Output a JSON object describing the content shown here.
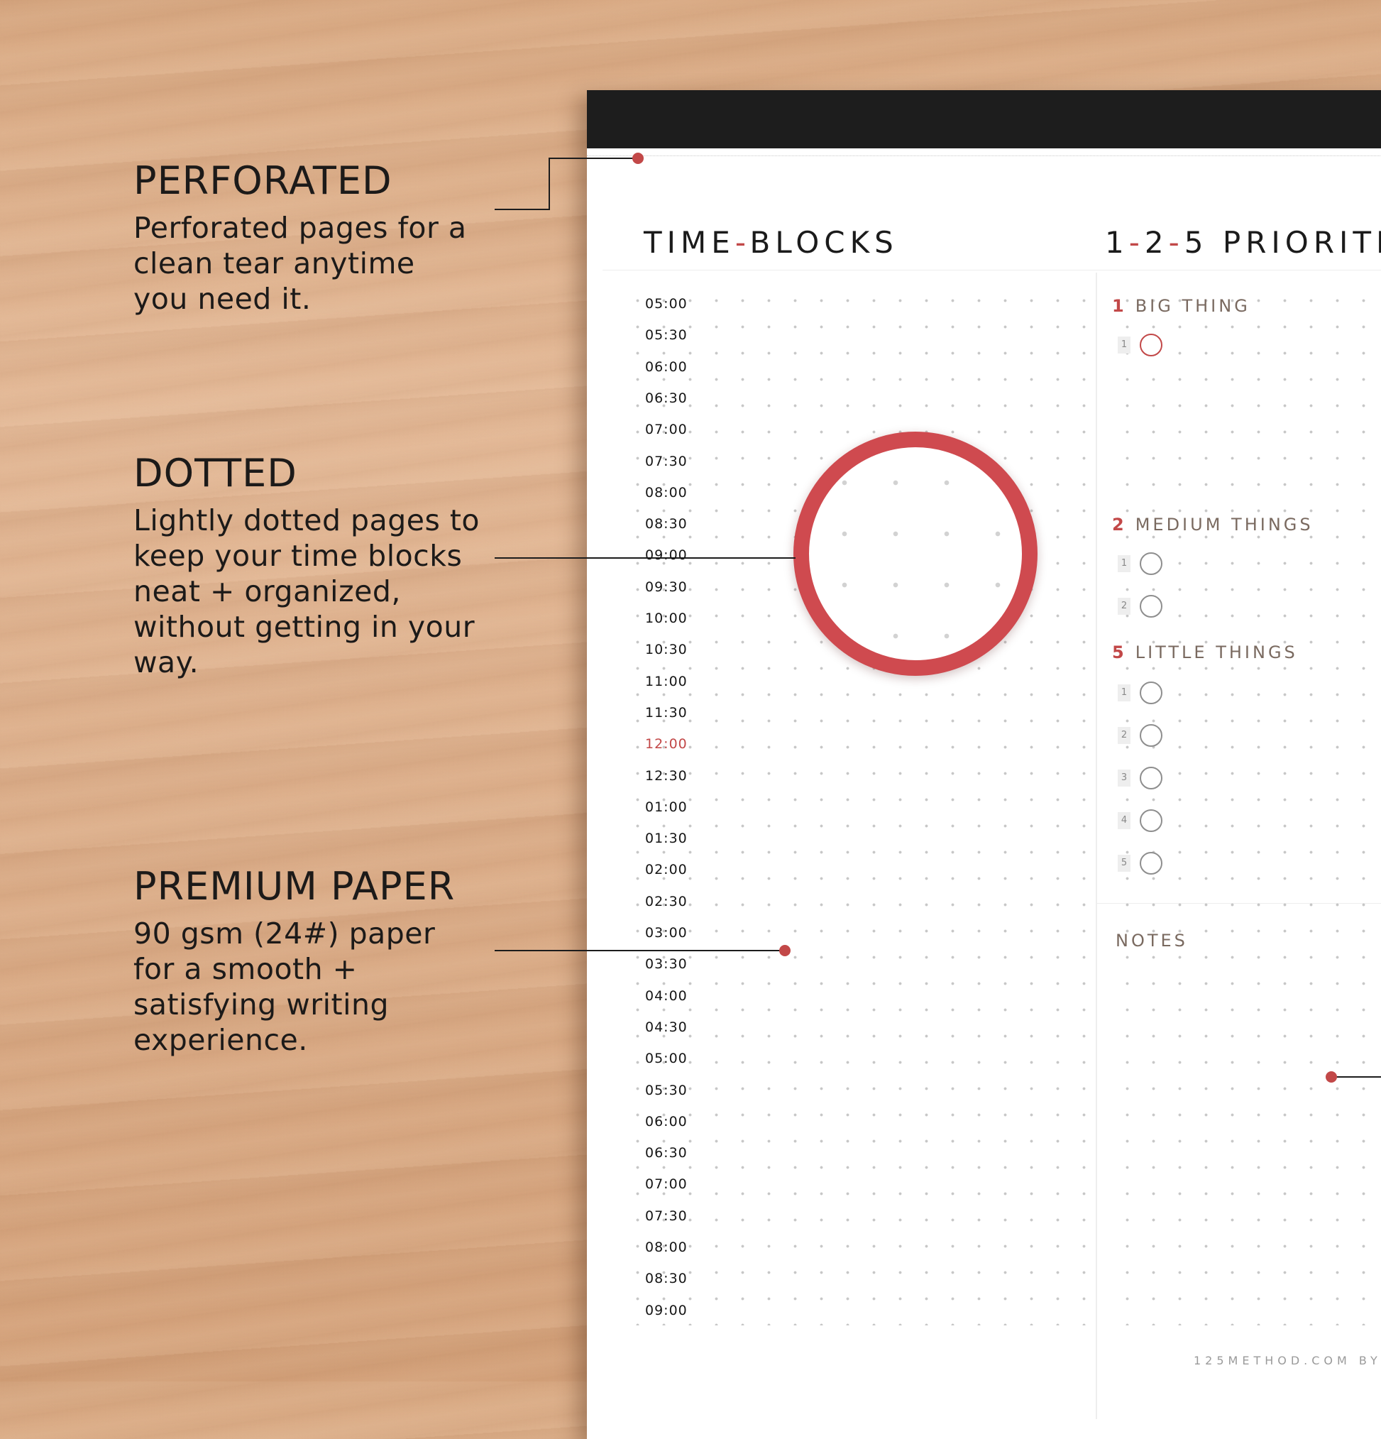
{
  "features": [
    {
      "title": "PERFORATED",
      "text": "Perforated pages for a clean tear anytime you need it."
    },
    {
      "title": "DOTTED",
      "text": "Lightly dotted pages to keep your time blocks neat + organized, without getting in your way."
    },
    {
      "title": "PREMIUM PAPER",
      "text": "90 gsm (24#) paper for a smooth + satisfying writing experience."
    }
  ],
  "planner": {
    "time_title": {
      "a": "TIME",
      "sep": "-",
      "b": "BLOCKS"
    },
    "prio_title": {
      "a": "1",
      "b": "2",
      "c": "5",
      "sep": "-",
      "rest": " PRIORITIES"
    },
    "times": [
      "05:00",
      "05:30",
      "06:00",
      "06:30",
      "07:00",
      "07:30",
      "08:00",
      "08:30",
      "09:00",
      "09:30",
      "10:00",
      "10:30",
      "11:00",
      "11:30",
      "12:00",
      "12:30",
      "01:00",
      "01:30",
      "02:00",
      "02:30",
      "03:00",
      "03:30",
      "04:00",
      "04:30",
      "05:00",
      "05:30",
      "06:00",
      "06:30",
      "07:00",
      "07:30",
      "08:00",
      "08:30",
      "09:00"
    ],
    "groups": [
      {
        "num": "1",
        "label": "BIG THING",
        "items": [
          "1"
        ]
      },
      {
        "num": "2",
        "label": "MEDIUM THINGS",
        "items": [
          "1",
          "2"
        ]
      },
      {
        "num": "5",
        "label": "LITTLE THINGS",
        "items": [
          "1",
          "2",
          "3",
          "4",
          "5"
        ]
      }
    ],
    "notes_label": "NOTES",
    "footer": "125METHOD.COM BY"
  },
  "colors": {
    "accent": "#c24848",
    "ring": "#cf4a4f",
    "band": "#1d1d1d"
  }
}
